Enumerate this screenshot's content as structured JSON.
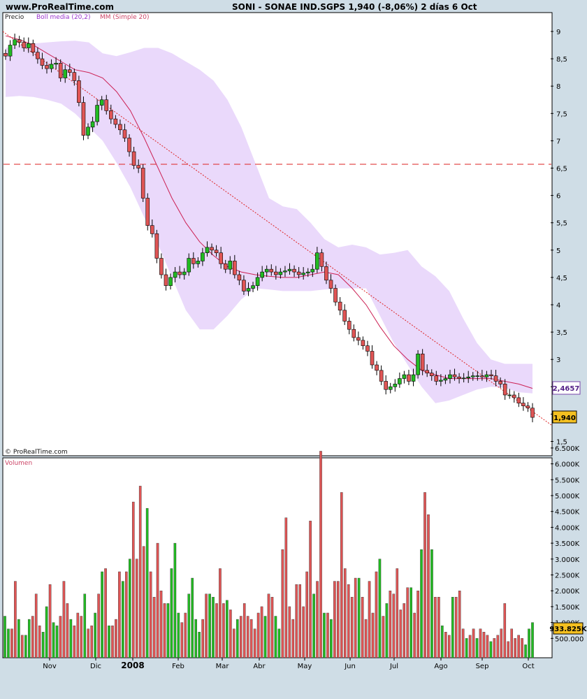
{
  "header": {
    "site": "www.ProRealTime.com",
    "title": "SONI - SONAE IND.SGPS    1,940 (-8,06%)    2 días  6 Oct"
  },
  "legend": {
    "price": "Precio",
    "boll": "Boll media (20,2)",
    "mm": "MM (Simple 20)"
  },
  "copyright": "© ProRealTime.com",
  "volume_label": "Volumen",
  "price_labels": {
    "mm_value": "2,4657",
    "last": "1,940"
  },
  "volume_labels": {
    "last": "933.825K"
  },
  "colors": {
    "up": "#22bb22",
    "down": "#e05555",
    "band": "#ead9fb",
    "mm": "#cc2255",
    "ref": "#dd2222"
  },
  "chart_data": [
    {
      "type": "candlestick",
      "title": "SONI - SONAE IND.SGPS",
      "y_ticks": [
        "9",
        "8,5",
        "8",
        "7,5",
        "7",
        "6,5",
        "6",
        "5,5",
        "5",
        "4,5",
        "4",
        "3,5",
        "3",
        "2,5",
        "2",
        "1,5"
      ],
      "x_ticks": [
        "Nov",
        "Dic",
        "2008",
        "Feb",
        "Mar",
        "Abr",
        "May",
        "Jun",
        "Jul",
        "Ago",
        "Sep",
        "Oct"
      ],
      "ylim": [
        1.4,
        9.1
      ],
      "horizontal_line": 6.57,
      "last_close": 1.94,
      "mm_last": 2.4657,
      "trendline": {
        "start": 9.0,
        "end": 1.8
      },
      "closes": [
        8.55,
        8.75,
        8.85,
        8.8,
        8.7,
        8.78,
        8.62,
        8.5,
        8.38,
        8.32,
        8.4,
        8.42,
        8.15,
        8.3,
        8.25,
        8.1,
        7.7,
        7.1,
        7.25,
        7.35,
        7.65,
        7.75,
        7.55,
        7.4,
        7.3,
        7.2,
        7.05,
        6.8,
        6.55,
        6.5,
        5.95,
        5.45,
        5.3,
        4.85,
        4.55,
        4.35,
        4.5,
        4.6,
        4.55,
        4.6,
        4.85,
        4.75,
        4.8,
        4.95,
        5.05,
        5.0,
        4.95,
        4.75,
        4.65,
        4.8,
        4.55,
        4.45,
        4.25,
        4.3,
        4.35,
        4.5,
        4.6,
        4.65,
        4.6,
        4.55,
        4.6,
        4.62,
        4.65,
        4.6,
        4.55,
        4.58,
        4.6,
        4.65,
        4.95,
        4.7,
        4.45,
        4.3,
        4.05,
        3.9,
        3.7,
        3.55,
        3.4,
        3.35,
        3.25,
        3.15,
        2.9,
        2.8,
        2.6,
        2.45,
        2.5,
        2.55,
        2.65,
        2.72,
        2.6,
        2.72,
        3.1,
        2.8,
        2.75,
        2.7,
        2.6,
        2.62,
        2.65,
        2.72,
        2.68,
        2.65,
        2.66,
        2.68,
        2.7,
        2.7,
        2.68,
        2.72,
        2.7,
        2.6,
        2.55,
        2.35,
        2.35,
        2.3,
        2.2,
        2.15,
        2.11,
        1.94
      ],
      "bollinger": {
        "upper": [
          8.7,
          8.75,
          8.78,
          8.8,
          8.82,
          8.83,
          8.8,
          8.6,
          8.55,
          8.62,
          8.7,
          8.7,
          8.6,
          8.45,
          8.3,
          8.1,
          7.75,
          7.25,
          6.6,
          5.95,
          5.8,
          5.75,
          5.5,
          5.2,
          5.05,
          5.1,
          5.05,
          4.92,
          4.95,
          5.0,
          4.7,
          4.52,
          4.25,
          3.75,
          3.3,
          3.0,
          2.92,
          2.92,
          2.92
        ],
        "lower": [
          7.8,
          7.82,
          7.8,
          7.75,
          7.68,
          7.5,
          7.25,
          7.0,
          6.6,
          6.15,
          5.6,
          5.1,
          4.5,
          3.9,
          3.55,
          3.55,
          3.8,
          4.1,
          4.3,
          4.28,
          4.25,
          4.25,
          4.25,
          4.28,
          4.3,
          4.3,
          4.3,
          3.8,
          3.3,
          2.9,
          2.5,
          2.2,
          2.25,
          2.35,
          2.45,
          2.5,
          2.48,
          2.4,
          2.38
        ]
      },
      "moving_average": [
        8.92,
        8.85,
        8.75,
        8.6,
        8.45,
        8.3,
        8.25,
        8.15,
        7.9,
        7.55,
        7.05,
        6.5,
        5.95,
        5.5,
        5.15,
        4.9,
        4.7,
        4.6,
        4.55,
        4.52,
        4.5,
        4.5,
        4.55,
        4.6,
        4.55,
        4.3,
        4.0,
        3.6,
        3.25,
        3.0,
        2.8,
        2.72,
        2.65,
        2.65,
        2.65,
        2.65,
        2.6,
        2.55,
        2.47
      ]
    },
    {
      "type": "bar",
      "title": "Volumen",
      "y_ticks": [
        "6.500K",
        "6.000K",
        "5.500K",
        "5.000K",
        "4.500K",
        "4.000K",
        "3.500K",
        "3.000K",
        "2.500K",
        "2.000K",
        "1.500K",
        "1.000K",
        "500.000"
      ],
      "ylim": [
        0,
        6600
      ],
      "last_value_k": 933.825,
      "values_k": [
        1200,
        800,
        800,
        2300,
        1100,
        600,
        600,
        1100,
        1200,
        1900,
        900,
        700,
        1500,
        2200,
        1000,
        900,
        1200,
        2300,
        1600,
        1100,
        900,
        1300,
        1200,
        1900,
        800,
        900,
        1300,
        1900,
        2600,
        2700,
        900,
        900,
        1100,
        2600,
        2300,
        2600,
        3000,
        4800,
        3000,
        5300,
        3400,
        4600,
        2600,
        1800,
        3500,
        2000,
        1600,
        1600,
        2700,
        3500,
        1300,
        1000,
        1300,
        1900,
        2400,
        1100,
        700,
        1100,
        1900,
        1900,
        1800,
        1600,
        2700,
        1600,
        1700,
        1400,
        800,
        1100,
        1200,
        1600,
        1200,
        1100,
        800,
        1300,
        1500,
        1200,
        1900,
        1800,
        1200,
        800,
        3300,
        4300,
        1500,
        1100,
        2200,
        2200,
        1500,
        2600,
        4200,
        1900,
        2300,
        6400,
        1300,
        1300,
        1100,
        2300,
        2300,
        5100,
        2700,
        2200,
        1800,
        2400,
        2400,
        1800,
        1100,
        2300,
        1300,
        2600,
        3000,
        1200,
        1600,
        2000,
        1900,
        2700,
        1400,
        1600,
        2100,
        2100,
        1300,
        2000,
        3300,
        5100,
        4400,
        3300,
        1800,
        1800,
        900,
        700,
        600,
        1800,
        1800,
        2000,
        800,
        500,
        600,
        800,
        500,
        800,
        700,
        600,
        400,
        500,
        600,
        800,
        1600,
        400,
        800,
        500,
        600,
        500,
        300,
        800,
        1000
      ]
    }
  ]
}
